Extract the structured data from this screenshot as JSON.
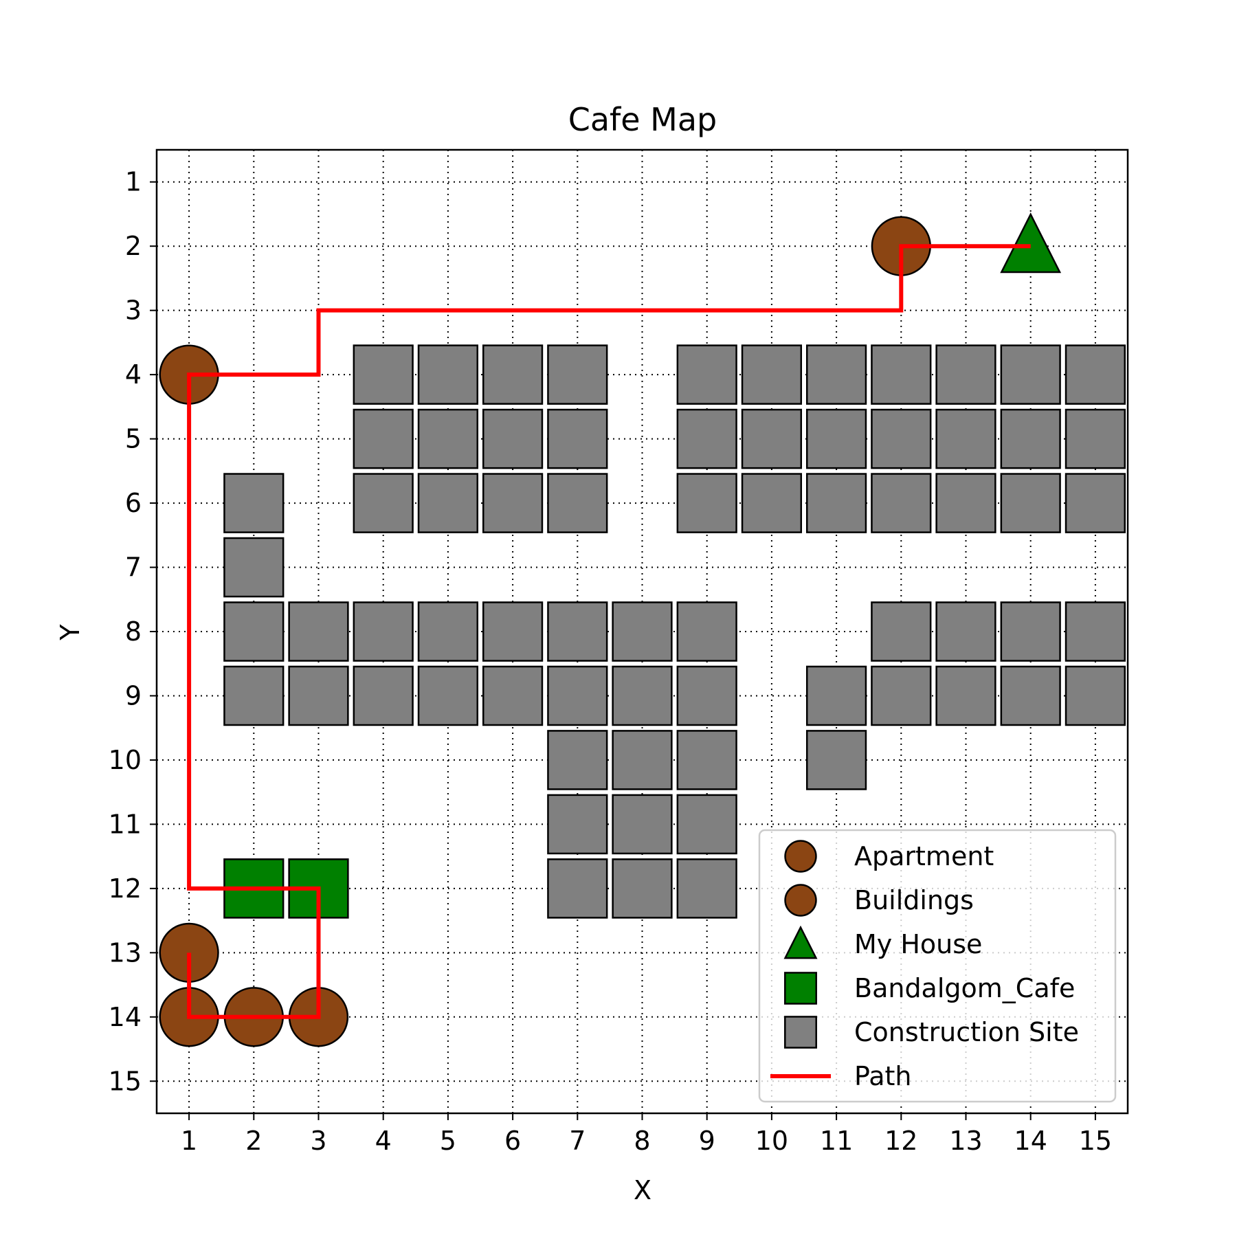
{
  "chart_data": {
    "type": "scatter",
    "title": "Cafe Map",
    "xlabel": "X",
    "ylabel": "Y",
    "xlim": [
      0.5,
      15.5
    ],
    "ylim": [
      0.5,
      15.5
    ],
    "y_inverted": true,
    "xticks": [
      1,
      2,
      3,
      4,
      5,
      6,
      7,
      8,
      9,
      10,
      11,
      12,
      13,
      14,
      15
    ],
    "yticks": [
      1,
      2,
      3,
      4,
      5,
      6,
      7,
      8,
      9,
      10,
      11,
      12,
      13,
      14,
      15
    ],
    "grid": true,
    "grid_style": "dotted",
    "legend_position": "lower-right",
    "colors": {
      "apartment": "#8B4513",
      "buildings": "#8B4513",
      "my_house": "#008000",
      "cafe": "#008000",
      "construction": "#808080",
      "path": "#FF0000"
    },
    "series": [
      {
        "name": "Apartment",
        "marker": "circle",
        "points": [
          [
            1,
            4
          ],
          [
            12,
            2
          ]
        ]
      },
      {
        "name": "Buildings",
        "marker": "circle",
        "points": [
          [
            1,
            13
          ],
          [
            1,
            14
          ],
          [
            2,
            14
          ],
          [
            3,
            14
          ]
        ]
      },
      {
        "name": "My House",
        "marker": "triangle",
        "points": [
          [
            14,
            2
          ]
        ]
      },
      {
        "name": "Bandalgom_Cafe",
        "marker": "square",
        "points": [
          [
            2,
            12
          ],
          [
            3,
            12
          ]
        ]
      },
      {
        "name": "Construction Site",
        "marker": "square",
        "points": [
          [
            4,
            4
          ],
          [
            5,
            4
          ],
          [
            6,
            4
          ],
          [
            7,
            4
          ],
          [
            9,
            4
          ],
          [
            10,
            4
          ],
          [
            11,
            4
          ],
          [
            12,
            4
          ],
          [
            13,
            4
          ],
          [
            14,
            4
          ],
          [
            15,
            4
          ],
          [
            4,
            5
          ],
          [
            5,
            5
          ],
          [
            6,
            5
          ],
          [
            7,
            5
          ],
          [
            9,
            5
          ],
          [
            10,
            5
          ],
          [
            11,
            5
          ],
          [
            12,
            5
          ],
          [
            13,
            5
          ],
          [
            14,
            5
          ],
          [
            15,
            5
          ],
          [
            2,
            6
          ],
          [
            4,
            6
          ],
          [
            5,
            6
          ],
          [
            6,
            6
          ],
          [
            7,
            6
          ],
          [
            9,
            6
          ],
          [
            10,
            6
          ],
          [
            11,
            6
          ],
          [
            12,
            6
          ],
          [
            13,
            6
          ],
          [
            14,
            6
          ],
          [
            15,
            6
          ],
          [
            2,
            7
          ],
          [
            2,
            8
          ],
          [
            3,
            8
          ],
          [
            4,
            8
          ],
          [
            5,
            8
          ],
          [
            6,
            8
          ],
          [
            7,
            8
          ],
          [
            8,
            8
          ],
          [
            9,
            8
          ],
          [
            12,
            8
          ],
          [
            13,
            8
          ],
          [
            14,
            8
          ],
          [
            15,
            8
          ],
          [
            2,
            9
          ],
          [
            3,
            9
          ],
          [
            4,
            9
          ],
          [
            5,
            9
          ],
          [
            6,
            9
          ],
          [
            7,
            9
          ],
          [
            8,
            9
          ],
          [
            9,
            9
          ],
          [
            11,
            9
          ],
          [
            12,
            9
          ],
          [
            13,
            9
          ],
          [
            14,
            9
          ],
          [
            15,
            9
          ],
          [
            7,
            10
          ],
          [
            8,
            10
          ],
          [
            9,
            10
          ],
          [
            11,
            10
          ],
          [
            7,
            11
          ],
          [
            8,
            11
          ],
          [
            9,
            11
          ],
          [
            7,
            12
          ],
          [
            8,
            12
          ],
          [
            9,
            12
          ]
        ]
      },
      {
        "name": "Path",
        "marker": "line",
        "points": [
          [
            14,
            2
          ],
          [
            12,
            2
          ],
          [
            12,
            3
          ],
          [
            3,
            3
          ],
          [
            3,
            4
          ],
          [
            1,
            4
          ],
          [
            1,
            12
          ],
          [
            3,
            12
          ],
          [
            3,
            14
          ],
          [
            1,
            14
          ],
          [
            1,
            13
          ]
        ]
      }
    ]
  }
}
